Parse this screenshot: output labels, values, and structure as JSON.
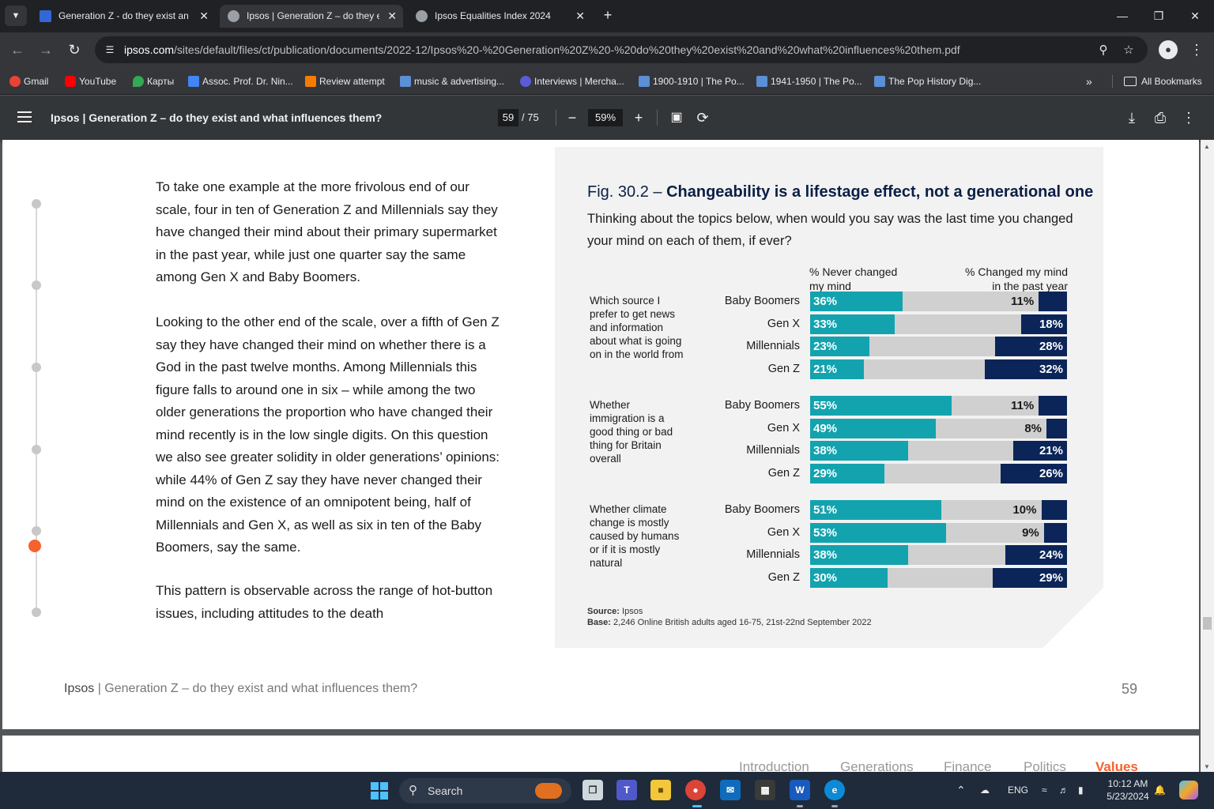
{
  "browser": {
    "tabs": [
      {
        "title": "Generation Z - do they exist an",
        "active": false
      },
      {
        "title": "Ipsos | Generation Z – do they e",
        "active": true
      },
      {
        "title": "Ipsos Equalities Index 2024",
        "active": false
      }
    ],
    "url_host": "ipsos.com",
    "url_path": "/sites/default/files/ct/publication/documents/2022-12/Ipsos%20-%20Generation%20Z%20-%20do%20they%20exist%20and%20what%20influences%20them.pdf",
    "bookmarks": [
      "Gmail",
      "YouTube",
      "Карты",
      "Assoc. Prof. Dr. Nin...",
      "Review attempt",
      "music & advertising...",
      "Interviews | Mercha...",
      "1900-1910 | The Po...",
      "1941-1950 | The Po...",
      "The Pop History Dig..."
    ],
    "all_bookmarks": "All Bookmarks"
  },
  "pdf": {
    "title": "Ipsos | Generation Z – do they exist and what influences them?",
    "page_current": "59",
    "page_total": "/ 75",
    "zoom": "59%"
  },
  "document": {
    "paragraphs": [
      "To take one example at the more frivolous end of our scale, four in ten of Generation Z and Millennials say they have changed their mind about their primary supermarket in the past year, while just one quarter say the same among Gen X and Baby Boomers.",
      "Looking to the other end of the scale, over a fifth of Gen Z say they have changed their mind on whether there is a God in the past twelve months. Among Millennials this figure falls to around one in six – while among the two older generations the proportion who have changed their mind recently is in the low single digits. On this question we also see greater solidity in older generations’ opinions: while 44% of Gen Z say they have never changed their mind on the existence of an omnipotent being, half of Millennials and Gen X, as well as six in ten of the Baby Boomers, say the same.",
      "This pattern is observable across the range of hot-button issues, including attitudes to the death"
    ],
    "footer_brand": "Ipsos",
    "footer_text": " | Generation Z – do they exist and what influences them?",
    "page_number": "59",
    "next_page_nav": [
      "Introduction",
      "Generations",
      "Finance",
      "Politics",
      "Values"
    ]
  },
  "chart_data": {
    "type": "bar",
    "title_prefix": "Fig. 30.2 – ",
    "title": "Changeability is a lifestage effect, not a generational one",
    "subtitle": "Thinking about the topics below, when would you say was the last time you changed your mind on each of them, if ever?",
    "legend": {
      "never": "% Never changed\nmy mind",
      "changed": "% Changed my mind\nin the past year"
    },
    "colors": {
      "never": "#13a3ae",
      "changed": "#0b2559",
      "rest": "#d0d0d0"
    },
    "groups": [
      {
        "topic": "Which source I\nprefer to get news\nand information\nabout what is going\non in the world from",
        "rows": [
          {
            "generation": "Baby Boomers",
            "never": 36,
            "changed": 11
          },
          {
            "generation": "Gen X",
            "never": 33,
            "changed": 18
          },
          {
            "generation": "Millennials",
            "never": 23,
            "changed": 28
          },
          {
            "generation": "Gen Z",
            "never": 21,
            "changed": 32
          }
        ]
      },
      {
        "topic": "Whether\nimmigration is a\ngood thing or bad\nthing for Britain\noverall",
        "rows": [
          {
            "generation": "Baby Boomers",
            "never": 55,
            "changed": 11
          },
          {
            "generation": "Gen X",
            "never": 49,
            "changed": 8
          },
          {
            "generation": "Millennials",
            "never": 38,
            "changed": 21
          },
          {
            "generation": "Gen Z",
            "never": 29,
            "changed": 26
          }
        ]
      },
      {
        "topic": "Whether climate\nchange is mostly\ncaused by humans\nor if it is mostly\nnatural",
        "rows": [
          {
            "generation": "Baby Boomers",
            "never": 51,
            "changed": 10
          },
          {
            "generation": "Gen X",
            "never": 53,
            "changed": 9
          },
          {
            "generation": "Millennials",
            "never": 38,
            "changed": 24
          },
          {
            "generation": "Gen Z",
            "never": 30,
            "changed": 29
          }
        ]
      }
    ],
    "source_label": "Source:",
    "source_text": " Ipsos",
    "base_label": "Base:",
    "base_text": " 2,246 Online British adults aged 16-75, 21st-22nd September 2022"
  },
  "taskbar": {
    "search_placeholder": "Search",
    "language": "ENG",
    "time": "10:12 AM",
    "date": "5/23/2024"
  }
}
